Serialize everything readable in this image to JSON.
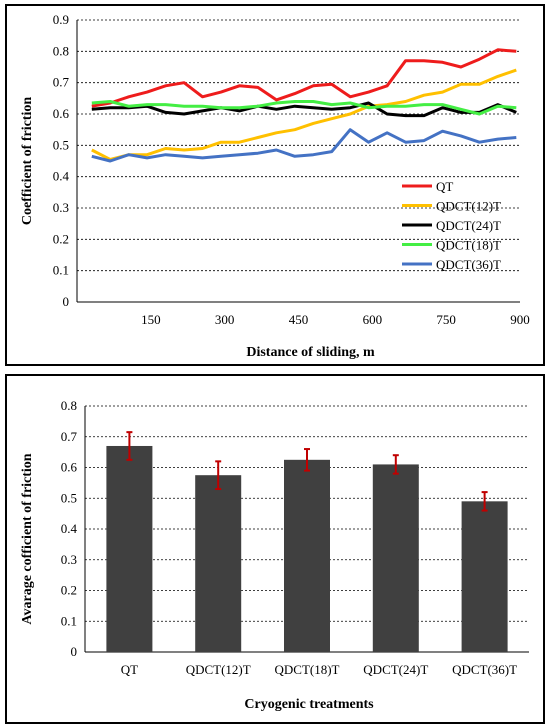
{
  "chart_data": [
    {
      "type": "line",
      "title": "",
      "xlabel": "Distance of sliding, m",
      "ylabel": "Coefficient of friction",
      "xlim": [
        0,
        900
      ],
      "ylim": [
        0,
        0.9
      ],
      "xticks": [
        150,
        300,
        450,
        600,
        750,
        900
      ],
      "yticks": [
        0,
        0.1,
        0.2,
        0.3,
        0.4,
        0.5,
        0.6,
        0.7,
        0.8,
        0.9
      ],
      "ytick_labels": [
        "0",
        "0.1",
        "0.2",
        "0.3",
        "0.4",
        "0.5",
        "0.6",
        "0.7",
        "0.8",
        "0.9"
      ],
      "grid": "horizontal",
      "legend": "bottom-right",
      "x": [
        30,
        67.5,
        105,
        142.5,
        180,
        217.5,
        255,
        292.5,
        330,
        367.5,
        405,
        442.5,
        480,
        517.5,
        555,
        592.5,
        630,
        667.5,
        705,
        742.5,
        780,
        817.5,
        855,
        892.5
      ],
      "series": [
        {
          "name": "QT",
          "color": "#ee1c1c",
          "values": [
            0.625,
            0.635,
            0.655,
            0.67,
            0.69,
            0.7,
            0.655,
            0.67,
            0.69,
            0.685,
            0.645,
            0.665,
            0.69,
            0.695,
            0.655,
            0.67,
            0.69,
            0.77,
            0.77,
            0.765,
            0.75,
            0.775,
            0.805,
            0.8
          ]
        },
        {
          "name": "QDCT(12)T",
          "color": "#ffc000",
          "values": [
            0.485,
            0.455,
            0.47,
            0.47,
            0.49,
            0.485,
            0.49,
            0.51,
            0.51,
            0.525,
            0.54,
            0.55,
            0.57,
            0.585,
            0.6,
            0.625,
            0.63,
            0.64,
            0.66,
            0.67,
            0.695,
            0.695,
            0.72,
            0.74
          ]
        },
        {
          "name": "QDCT(24)T",
          "color": "#000000",
          "values": [
            0.615,
            0.62,
            0.62,
            0.625,
            0.605,
            0.6,
            0.61,
            0.62,
            0.61,
            0.625,
            0.615,
            0.625,
            0.62,
            0.615,
            0.62,
            0.635,
            0.6,
            0.595,
            0.595,
            0.62,
            0.605,
            0.605,
            0.63,
            0.605
          ]
        },
        {
          "name": "QDCT(18)T",
          "color": "#44ee44",
          "values": [
            0.635,
            0.64,
            0.625,
            0.63,
            0.63,
            0.625,
            0.625,
            0.62,
            0.62,
            0.625,
            0.635,
            0.64,
            0.64,
            0.63,
            0.635,
            0.62,
            0.625,
            0.625,
            0.63,
            0.63,
            0.615,
            0.6,
            0.625,
            0.62
          ]
        },
        {
          "name": "QDCT(36)T",
          "color": "#4472c4",
          "values": [
            0.465,
            0.45,
            0.47,
            0.46,
            0.47,
            0.465,
            0.46,
            0.465,
            0.47,
            0.475,
            0.485,
            0.465,
            0.47,
            0.48,
            0.55,
            0.51,
            0.54,
            0.51,
            0.515,
            0.545,
            0.53,
            0.51,
            0.52,
            0.525
          ]
        }
      ]
    },
    {
      "type": "bar",
      "title": "",
      "xlabel": "Cryogenic treatments",
      "ylabel": "Avarage cofficient of friction",
      "ylim": [
        0,
        0.8
      ],
      "yticks": [
        0,
        0.1,
        0.2,
        0.3,
        0.4,
        0.5,
        0.6,
        0.7,
        0.8
      ],
      "ytick_labels": [
        "0",
        "0.1",
        "0.2",
        "0.3",
        "0.4",
        "0.5",
        "0.6",
        "0.7",
        "0.8"
      ],
      "grid": "horizontal",
      "bar_color": "#404040",
      "error_color": "#c00000",
      "categories": [
        "QT",
        "QDCT(12)T",
        "QDCT(18)T",
        "QDCT(24)T",
        "QDCT(36)T"
      ],
      "values": [
        0.67,
        0.575,
        0.625,
        0.61,
        0.49
      ],
      "errors": [
        0.045,
        0.045,
        0.035,
        0.03,
        0.03
      ]
    }
  ]
}
